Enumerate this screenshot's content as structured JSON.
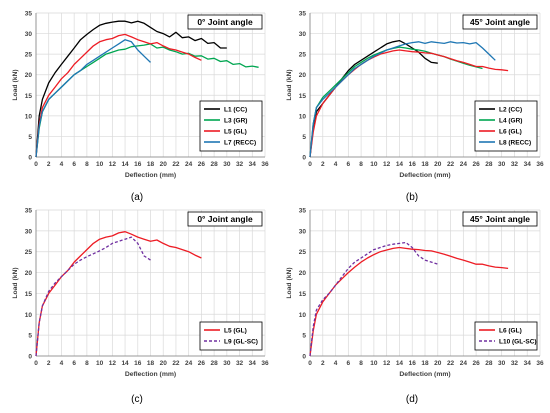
{
  "chart_data": [
    {
      "type": "line",
      "title": "0° Joint angle",
      "caption": "(a)",
      "xlabel": "Deflection (mm)",
      "ylabel": "Load (kN)",
      "xlim": [
        0,
        36
      ],
      "ylim": [
        0,
        35
      ],
      "xticks": [
        "0",
        "2",
        "4",
        "6",
        "8",
        "10",
        "12",
        "14",
        "16",
        "18",
        "20",
        "22",
        "24",
        "26",
        "28",
        "30",
        "32",
        "34",
        "36"
      ],
      "yticks": [
        "0",
        "5",
        "10",
        "15",
        "20",
        "25",
        "30",
        "35"
      ],
      "grid": true,
      "legend": "bottom-right",
      "series": [
        {
          "name": "L1 (CC)",
          "color": "#000000",
          "dash": false,
          "x": [
            0,
            0.5,
            1,
            2,
            3,
            4,
            5,
            6,
            7,
            8,
            9,
            10,
            11,
            12,
            13,
            14,
            15,
            16,
            17,
            18,
            19,
            20,
            21,
            22,
            23,
            24,
            25,
            26,
            27,
            28,
            29,
            30
          ],
          "y": [
            0,
            10,
            14,
            18,
            20.5,
            22.5,
            24.5,
            26.5,
            28.5,
            29.8,
            31,
            32,
            32.5,
            32.8,
            33,
            33,
            32.6,
            33,
            32.5,
            31.5,
            30.5,
            30,
            29.2,
            30.3,
            29,
            29.2,
            28.3,
            28.8,
            27.6,
            27.8,
            26.5,
            26.5
          ]
        },
        {
          "name": "L3 (GR)",
          "color": "#00a651",
          "dash": false,
          "x": [
            0,
            0.5,
            1,
            2,
            3,
            4,
            5,
            6,
            7,
            8,
            9,
            10,
            11,
            12,
            13,
            14,
            15,
            16,
            17,
            18,
            19,
            20,
            21,
            22,
            23,
            24,
            25,
            26,
            27,
            28,
            29,
            30,
            31,
            32,
            33,
            34,
            35
          ],
          "y": [
            0,
            7,
            11,
            14,
            15.5,
            17,
            18.5,
            20,
            21,
            22,
            23,
            24,
            25,
            25.5,
            26,
            26.2,
            26.8,
            27,
            27.2,
            27.5,
            26.5,
            26.7,
            26,
            25.6,
            25,
            25.2,
            24.5,
            24.6,
            23.8,
            24,
            23.2,
            23.4,
            22.5,
            22.7,
            21.9,
            22.1,
            21.8
          ]
        },
        {
          "name": "L5 (GL)",
          "color": "#ed1c24",
          "dash": false,
          "x": [
            0,
            0.5,
            1,
            2,
            3,
            4,
            5,
            6,
            7,
            8,
            9,
            10,
            11,
            12,
            13,
            14,
            15,
            16,
            17,
            18,
            19,
            20,
            21,
            22,
            23,
            24,
            25,
            26
          ],
          "y": [
            0,
            8,
            12,
            15,
            17,
            19,
            20.5,
            22.5,
            24,
            25.5,
            27,
            28,
            28.5,
            28.8,
            29.5,
            29.8,
            29.2,
            28.5,
            28,
            27.5,
            27.8,
            27,
            26.3,
            26,
            25.5,
            25,
            24.2,
            23.5
          ]
        },
        {
          "name": "L7 (RECC)",
          "color": "#1f77b4",
          "dash": false,
          "x": [
            0,
            0.5,
            1,
            2,
            3,
            4,
            5,
            6,
            7,
            8,
            9,
            10,
            11,
            12,
            13,
            14,
            15,
            16,
            17,
            18
          ],
          "y": [
            0,
            7.5,
            11,
            14,
            15.5,
            17,
            18.5,
            20,
            21,
            22.5,
            23.5,
            24.5,
            25.5,
            26.5,
            27.5,
            28.5,
            28,
            26,
            24.5,
            23
          ]
        }
      ]
    },
    {
      "type": "line",
      "title": "45° Joint angle",
      "caption": "(b)",
      "xlabel": "Deflection (mm)",
      "ylabel": "Load (kN)",
      "xlim": [
        0,
        36
      ],
      "ylim": [
        0,
        35
      ],
      "xticks": [
        "0",
        "2",
        "4",
        "6",
        "8",
        "10",
        "12",
        "14",
        "16",
        "18",
        "20",
        "22",
        "24",
        "26",
        "28",
        "30",
        "32",
        "34",
        "36"
      ],
      "yticks": [
        "0",
        "5",
        "10",
        "15",
        "20",
        "25",
        "30",
        "35"
      ],
      "grid": true,
      "legend": "bottom-right",
      "series": [
        {
          "name": "L2 (CC)",
          "color": "#000000",
          "dash": false,
          "x": [
            0,
            0.5,
            1,
            2,
            3,
            4,
            5,
            6,
            7,
            8,
            9,
            10,
            11,
            12,
            13,
            14,
            15,
            16,
            17,
            18,
            19,
            20
          ],
          "y": [
            0,
            7,
            11,
            13,
            15,
            17,
            19,
            21,
            22.5,
            23.5,
            24.5,
            25.5,
            26.5,
            27.5,
            28,
            28.3,
            27.5,
            26.5,
            25.5,
            24,
            23,
            22.8
          ]
        },
        {
          "name": "L4 (GR)",
          "color": "#00a651",
          "dash": false,
          "x": [
            0,
            0.5,
            1,
            2,
            3,
            4,
            5,
            6,
            7,
            8,
            9,
            10,
            11,
            12,
            13,
            14,
            15,
            16,
            17,
            18,
            19,
            20,
            21,
            22,
            23,
            24,
            25,
            26,
            27
          ],
          "y": [
            0,
            8,
            12,
            14.5,
            16,
            17.5,
            19,
            20.5,
            22,
            23,
            24,
            24.8,
            25.4,
            26,
            26.4,
            26.7,
            26.5,
            26.2,
            26,
            25.7,
            25.2,
            24.8,
            24.4,
            23.8,
            23.3,
            22.8,
            22.3,
            21.9,
            21.5
          ]
        },
        {
          "name": "L6 (GL)",
          "color": "#ed1c24",
          "dash": false,
          "x": [
            0,
            0.5,
            1,
            2,
            3,
            4,
            5,
            6,
            7,
            8,
            9,
            10,
            11,
            12,
            13,
            14,
            15,
            16,
            17,
            18,
            19,
            20,
            21,
            22,
            23,
            24,
            25,
            26,
            27,
            28,
            29,
            30,
            31
          ],
          "y": [
            0,
            6,
            10,
            13,
            15,
            17,
            18.5,
            20,
            21.3,
            22.5,
            23.5,
            24.3,
            25,
            25.4,
            25.8,
            26,
            25.8,
            25.6,
            25.5,
            25.3,
            25.2,
            24.8,
            24.4,
            23.9,
            23.4,
            23,
            22.5,
            22,
            22,
            21.6,
            21.3,
            21.2,
            21
          ]
        },
        {
          "name": "L8 (RECC)",
          "color": "#1f77b4",
          "dash": false,
          "x": [
            0,
            0.5,
            1,
            2,
            3,
            4,
            5,
            6,
            7,
            8,
            9,
            10,
            11,
            12,
            13,
            14,
            15,
            16,
            17,
            18,
            19,
            20,
            21,
            22,
            23,
            24,
            25,
            26,
            27,
            28,
            29
          ],
          "y": [
            0,
            8,
            12,
            14,
            15.5,
            17,
            18.5,
            20,
            21.5,
            22.5,
            23.5,
            24.5,
            25.2,
            26,
            26.5,
            27,
            27.5,
            27.8,
            28,
            27.6,
            28,
            27.8,
            27.6,
            28,
            27.7,
            27.8,
            27.5,
            27.8,
            26.5,
            25,
            23.5
          ]
        }
      ]
    },
    {
      "type": "line",
      "title": "0° Joint angle",
      "caption": "(c)",
      "xlabel": "Deflection (mm)",
      "ylabel": "Load (kN)",
      "xlim": [
        0,
        36
      ],
      "ylim": [
        0,
        35
      ],
      "xticks": [
        "0",
        "2",
        "4",
        "6",
        "8",
        "10",
        "12",
        "14",
        "16",
        "18",
        "20",
        "22",
        "24",
        "26",
        "28",
        "30",
        "32",
        "34",
        "36"
      ],
      "yticks": [
        "0",
        "5",
        "10",
        "15",
        "20",
        "25",
        "30",
        "35"
      ],
      "grid": true,
      "legend": "bottom-right",
      "series": [
        {
          "name": "L5 (GL)",
          "color": "#ed1c24",
          "dash": false,
          "x": [
            0,
            0.5,
            1,
            2,
            3,
            4,
            5,
            6,
            7,
            8,
            9,
            10,
            11,
            12,
            13,
            14,
            15,
            16,
            17,
            18,
            19,
            20,
            21,
            22,
            23,
            24,
            25,
            26
          ],
          "y": [
            0,
            8,
            12,
            15,
            17,
            19,
            20.5,
            22.5,
            24,
            25.5,
            27,
            28,
            28.5,
            28.8,
            29.5,
            29.8,
            29.2,
            28.5,
            28,
            27.5,
            27.8,
            27,
            26.3,
            26,
            25.5,
            25,
            24.2,
            23.5
          ]
        },
        {
          "name": "L9 (GL-SC)",
          "color": "#7030a0",
          "dash": true,
          "x": [
            0,
            0.5,
            1,
            2,
            3,
            4,
            5,
            6,
            7,
            8,
            9,
            10,
            11,
            12,
            13,
            14,
            15,
            16,
            17,
            18
          ],
          "y": [
            0,
            8,
            12,
            15.5,
            17.5,
            19,
            20.5,
            22,
            23,
            23.8,
            24.5,
            25.2,
            26,
            27,
            27.5,
            28,
            28.5,
            27,
            24,
            23
          ]
        }
      ]
    },
    {
      "type": "line",
      "title": "45° Joint angle",
      "caption": "(d)",
      "xlabel": "Deflection (mm)",
      "ylabel": "Load (kN)",
      "xlim": [
        0,
        36
      ],
      "ylim": [
        0,
        35
      ],
      "xticks": [
        "0",
        "2",
        "4",
        "6",
        "8",
        "10",
        "12",
        "14",
        "16",
        "18",
        "20",
        "22",
        "24",
        "26",
        "28",
        "30",
        "32",
        "34",
        "36"
      ],
      "yticks": [
        "0",
        "5",
        "10",
        "15",
        "20",
        "25",
        "30",
        "35"
      ],
      "grid": true,
      "legend": "bottom-right",
      "series": [
        {
          "name": "L6 (GL)",
          "color": "#ed1c24",
          "dash": false,
          "x": [
            0,
            0.5,
            1,
            2,
            3,
            4,
            5,
            6,
            7,
            8,
            9,
            10,
            11,
            12,
            13,
            14,
            15,
            16,
            17,
            18,
            19,
            20,
            21,
            22,
            23,
            24,
            25,
            26,
            27,
            28,
            29,
            30,
            31
          ],
          "y": [
            0,
            6,
            10,
            13,
            15,
            17,
            18.5,
            20,
            21.3,
            22.5,
            23.5,
            24.3,
            25,
            25.4,
            25.8,
            26,
            25.8,
            25.6,
            25.5,
            25.3,
            25.2,
            24.8,
            24.4,
            23.9,
            23.4,
            23,
            22.5,
            22,
            22,
            21.6,
            21.3,
            21.2,
            21
          ]
        },
        {
          "name": "L10 (GL-SC)",
          "color": "#7030a0",
          "dash": true,
          "x": [
            0,
            0.5,
            1,
            2,
            3,
            4,
            5,
            6,
            7,
            8,
            9,
            10,
            11,
            12,
            13,
            14,
            15,
            16,
            17,
            18,
            19,
            20
          ],
          "y": [
            0,
            7,
            11,
            13.5,
            15,
            17,
            19,
            21,
            22.5,
            23.5,
            24.5,
            25.5,
            26,
            26.5,
            26.8,
            27,
            27.2,
            26,
            24,
            23,
            22.5,
            22
          ]
        }
      ]
    }
  ]
}
